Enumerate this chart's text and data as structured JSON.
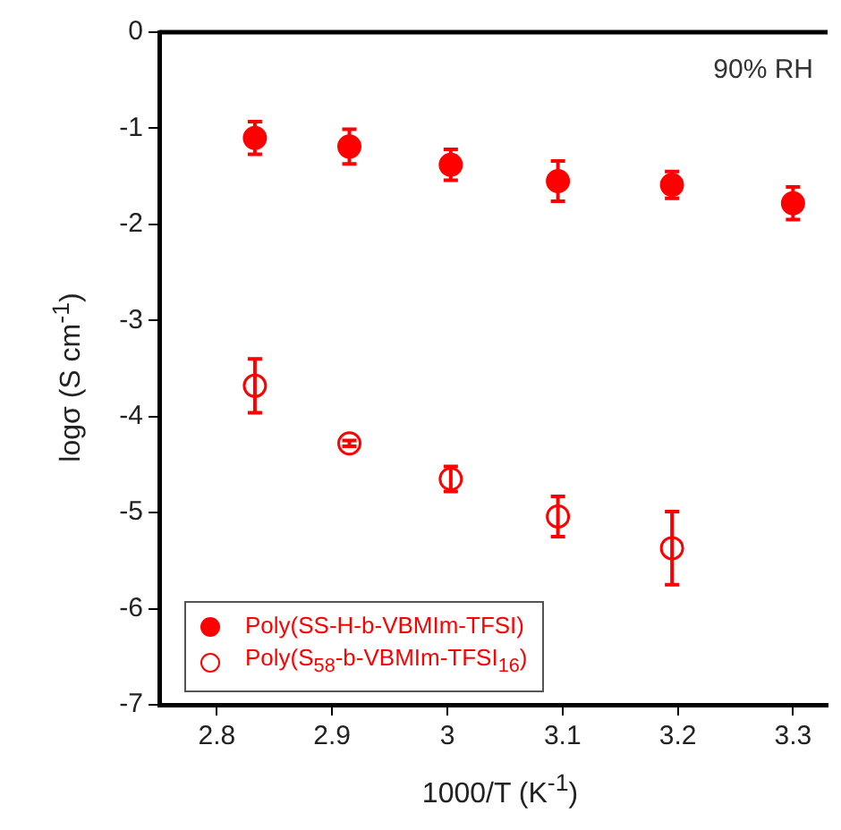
{
  "chart_data": {
    "type": "scatter",
    "xlabel": "1000/T (K$^{-1}$)",
    "ylabel": "logσ (S cm$^{-1}$)",
    "annotations": [
      "90% RH"
    ],
    "xlim": [
      2.75,
      3.33
    ],
    "xticks": [
      2.8,
      2.9,
      3,
      3.1,
      3.2,
      3.3
    ],
    "ylim": [
      -7,
      0
    ],
    "yticks": [
      -7,
      -6,
      -5,
      -4,
      -3,
      -2,
      -1,
      0
    ],
    "grid": false,
    "legend": "bottom left",
    "marker": "circle",
    "series": [
      {
        "name": "Poly(SS-H-b-VBMIm-TFSI)",
        "color": "#ff0000",
        "x": [
          2.833,
          2.915,
          3.003,
          3.096,
          3.195,
          3.3
        ],
        "values": [
          -1.1,
          -1.19,
          -1.38,
          -1.55,
          -1.59,
          -1.78
        ],
        "errors": [
          0.17,
          0.18,
          0.16,
          0.21,
          0.14,
          0.17
        ]
      },
      {
        "name": "Poly(S$_{58}$-b-VBMIm-TFSI$_{16}$)",
        "color": "#ff0000",
        "x": [
          2.833,
          2.915,
          3.003,
          3.096,
          3.195
        ],
        "values": [
          -3.68,
          -4.28,
          -4.65,
          -5.04,
          -5.37
        ],
        "errors": [
          0.28,
          0.03,
          0.13,
          0.21,
          0.38
        ]
      }
    ]
  }
}
